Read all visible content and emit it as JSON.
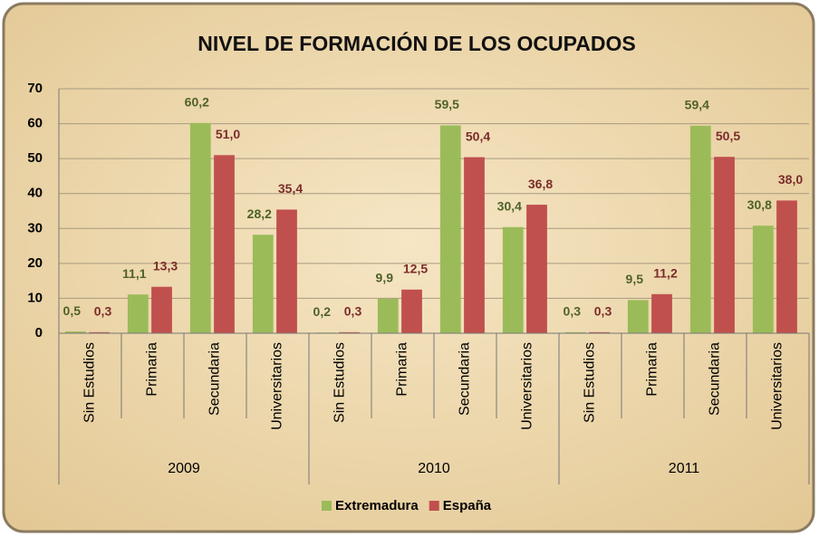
{
  "chart_data": {
    "type": "bar",
    "title": "NIVEL DE FORMACIÓN DE LOS OCUPADOS",
    "groups": [
      "2009",
      "2010",
      "2011"
    ],
    "categories": [
      "Sin Estudios",
      "Primaria",
      "Secundaria",
      "Universitarios"
    ],
    "series": [
      {
        "name": "Extremadura",
        "color": "#9bbb59",
        "label_color": "#4f6228",
        "values": [
          [
            0.5,
            11.1,
            60.2,
            28.2
          ],
          [
            0.2,
            9.9,
            59.5,
            30.4
          ],
          [
            0.3,
            9.5,
            59.4,
            30.8
          ]
        ],
        "value_labels": [
          [
            "0,5",
            "11,1",
            "60,2",
            "28,2"
          ],
          [
            "0,2",
            "9,9",
            "59,5",
            "30,4"
          ],
          [
            "0,3",
            "9,5",
            "59,4",
            "30,8"
          ]
        ]
      },
      {
        "name": "España",
        "color": "#c0504d",
        "label_color": "#7b2c2a",
        "values": [
          [
            0.3,
            13.3,
            51.0,
            35.4
          ],
          [
            0.3,
            12.5,
            50.4,
            36.8
          ],
          [
            0.3,
            11.2,
            50.5,
            38.0
          ]
        ],
        "value_labels": [
          [
            "0,3",
            "13,3",
            "51,0",
            "35,4"
          ],
          [
            "0,3",
            "12,5",
            "50,4",
            "36,8"
          ],
          [
            "0,3",
            "11,2",
            "50,5",
            "38,0"
          ]
        ]
      }
    ],
    "ylim": [
      0,
      70
    ],
    "yticks": [
      0,
      10,
      20,
      30,
      40,
      50,
      60,
      70
    ],
    "grid": true,
    "legend": "bottom"
  }
}
